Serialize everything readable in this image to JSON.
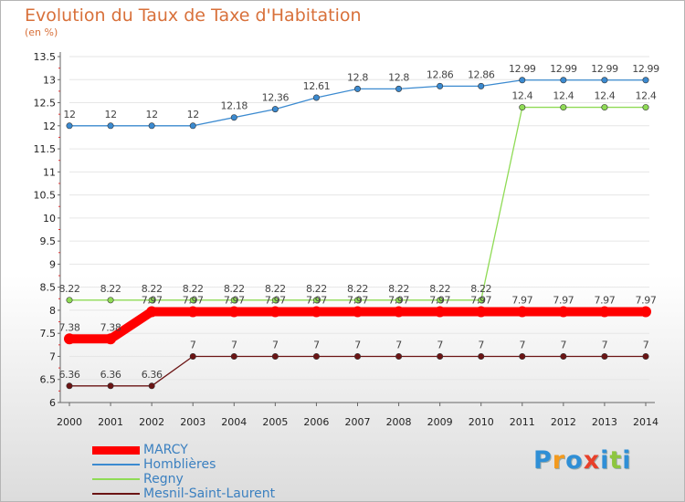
{
  "chart_data": {
    "type": "line",
    "title": "Evolution du Taux de Taxe d'Habitation",
    "unit": "(en %)",
    "x": [
      2000,
      2001,
      2002,
      2003,
      2004,
      2005,
      2006,
      2007,
      2008,
      2009,
      2010,
      2011,
      2012,
      2013,
      2014
    ],
    "x_tick_labels": [
      "2000",
      "2001",
      "2002",
      "2003",
      "2004",
      "2005",
      "2006",
      "2007",
      "2008",
      "2009",
      "2010",
      "2011",
      "2012",
      "2013",
      "2014"
    ],
    "ylim": [
      6,
      13.5
    ],
    "y_ticks": [
      6,
      6.5,
      7,
      7.5,
      8,
      8.5,
      9,
      9.5,
      10,
      10.5,
      11,
      11.5,
      12,
      12.5,
      13,
      13.5
    ],
    "y_tick_labels": [
      "6",
      "6.5",
      "7",
      "7.5",
      "8",
      "8.5",
      "9",
      "9.5",
      "10",
      "10.5",
      "11",
      "11.5",
      "12",
      "12.5",
      "13",
      "13.5"
    ],
    "legend_position": "bottom-left",
    "series": [
      {
        "name": "MARCY",
        "color": "#ff0000",
        "thick": true,
        "values": [
          7.38,
          7.38,
          7.97,
          7.97,
          7.97,
          7.97,
          7.97,
          7.97,
          7.97,
          7.97,
          7.97,
          7.97,
          7.97,
          7.97,
          7.97
        ],
        "labels": [
          "7.38",
          "7.38",
          "7.97",
          "7.97",
          "7.97",
          "7.97",
          "7.97",
          "7.97",
          "7.97",
          "7.97",
          "7.97",
          "7.97",
          "7.97",
          "7.97",
          "7.97"
        ]
      },
      {
        "name": "Homblières",
        "color": "#3b8ad0",
        "values": [
          12,
          12,
          12,
          12,
          12.18,
          12.36,
          12.61,
          12.8,
          12.8,
          12.86,
          12.86,
          12.99,
          12.99,
          12.99,
          12.99
        ],
        "labels": [
          "12",
          "12",
          "12",
          "12",
          "12.18",
          "12.36",
          "12.61",
          "12.8",
          "12.8",
          "12.86",
          "12.86",
          "12.99",
          "12.99",
          "12.99",
          "12.99"
        ]
      },
      {
        "name": "Regny",
        "color": "#8fdb55",
        "values": [
          8.22,
          8.22,
          8.22,
          8.22,
          8.22,
          8.22,
          8.22,
          8.22,
          8.22,
          8.22,
          8.22,
          12.4,
          12.4,
          12.4,
          12.4
        ],
        "labels": [
          "8.22",
          "8.22",
          "8.22",
          "8.22",
          "8.22",
          "8.22",
          "8.22",
          "8.22",
          "8.22",
          "8.22",
          "8.22",
          "12.4",
          "12.4",
          "12.4",
          "12.4"
        ]
      },
      {
        "name": "Mesnil-Saint-Laurent",
        "color": "#6b1414",
        "values": [
          6.36,
          6.36,
          6.36,
          7,
          7,
          7,
          7,
          7,
          7,
          7,
          7,
          7,
          7,
          7,
          7
        ],
        "labels": [
          "6.36",
          "6.36",
          "6.36",
          "7",
          "7",
          "7",
          "7",
          "7",
          "7",
          "7",
          "7",
          "7",
          "7",
          "7",
          "7"
        ]
      }
    ],
    "logo": "Proxiti"
  }
}
